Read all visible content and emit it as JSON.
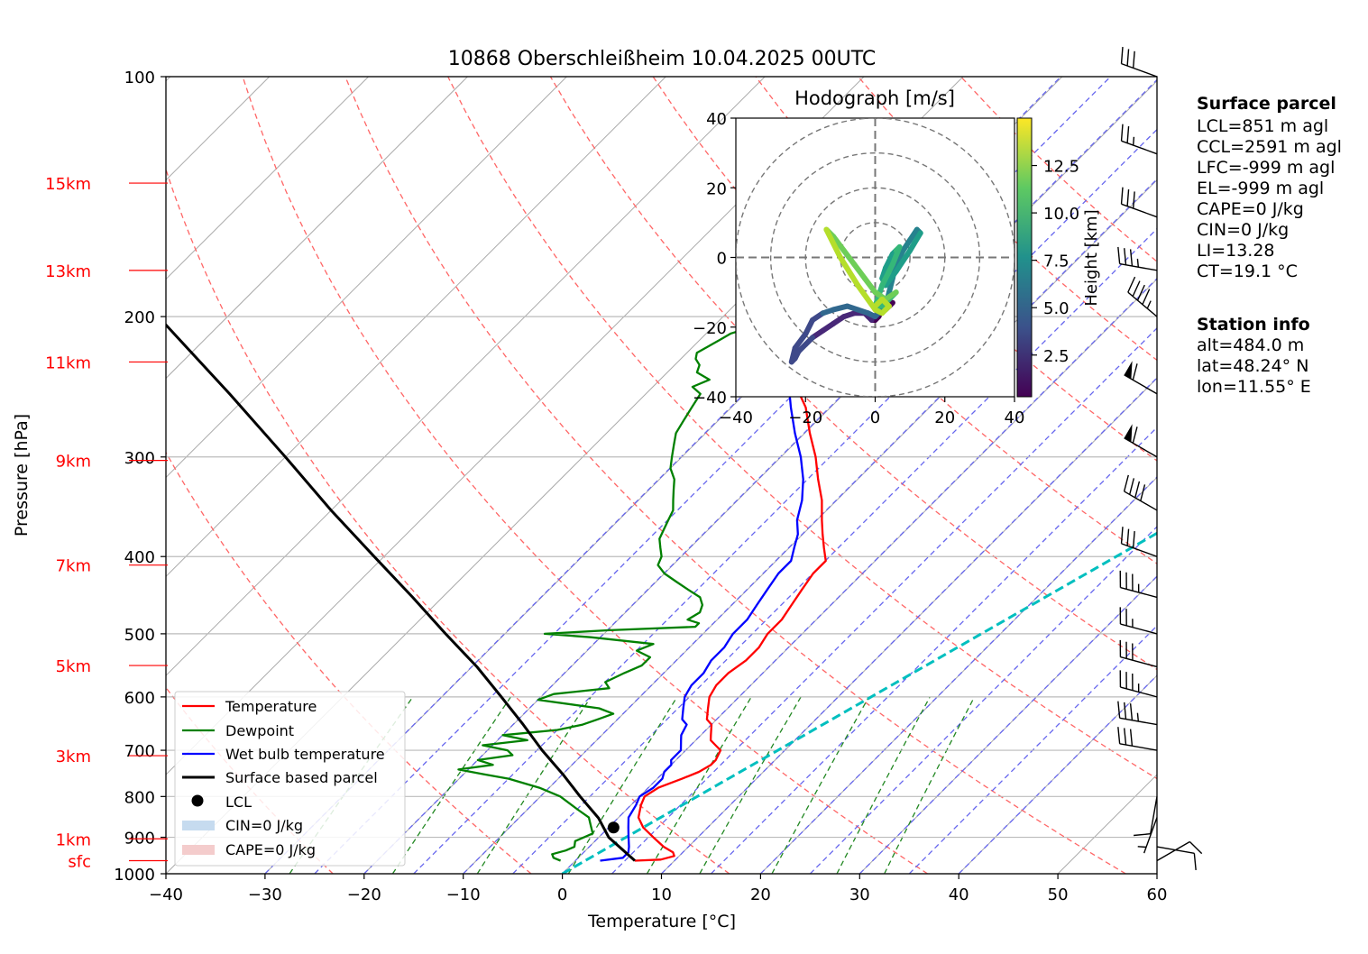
{
  "title": "10868 Oberschleißheim 10.04.2025 00UTC",
  "chart_data": {
    "type": "line",
    "subtype": "skew-T log-P diagram",
    "xlabel": "Temperature [°C]",
    "ylabel": "Pressure [hPa]",
    "xlim": [
      -40,
      60
    ],
    "ylim": [
      1000,
      100
    ],
    "y_scale": "log",
    "grid": true,
    "x_ticks": [
      "−40",
      "−30",
      "−20",
      "−10",
      "0",
      "10",
      "20",
      "30",
      "40",
      "50",
      "60"
    ],
    "y_ticks": [
      "100",
      "200",
      "300",
      "400",
      "500",
      "600",
      "700",
      "800",
      "900",
      "1000"
    ],
    "height_labels": [
      {
        "label": "15km",
        "p": 136
      },
      {
        "label": "13km",
        "p": 175
      },
      {
        "label": "11km",
        "p": 228
      },
      {
        "label": "9km",
        "p": 303
      },
      {
        "label": "7km",
        "p": 410
      },
      {
        "label": "5km",
        "p": 548
      },
      {
        "label": "3km",
        "p": 711
      },
      {
        "label": "1km",
        "p": 904
      },
      {
        "label": "sfc",
        "p": 963
      }
    ],
    "series": [
      {
        "name": "Temperature",
        "color": "#ff0000",
        "p": [
          963,
          960,
          950,
          940,
          925,
          900,
          875,
          850,
          820,
          800,
          780,
          760,
          745,
          730,
          720,
          700,
          690,
          680,
          670,
          650,
          640,
          620,
          600,
          580,
          560,
          540,
          520,
          500,
          480,
          460,
          440,
          420,
          405,
          390,
          375,
          360,
          340,
          320,
          300,
          280,
          260,
          250,
          240,
          230,
          225,
          220,
          215,
          205,
          200,
          195,
          190,
          185,
          180,
          175,
          170,
          165,
          160,
          155,
          150,
          145,
          140,
          137,
          135
        ],
        "t": [
          6.0,
          8.5,
          9.5,
          9.0,
          7.5,
          5.5,
          3.5,
          2.0,
          1.0,
          0.5,
          1.0,
          2.5,
          3.5,
          4.0,
          4.0,
          3.5,
          2.5,
          1.5,
          1.0,
          0.0,
          -1.0,
          -2.0,
          -3.0,
          -3.5,
          -3.5,
          -3.0,
          -3.0,
          -3.5,
          -3.5,
          -4.0,
          -4.5,
          -5.0,
          -5.0,
          -6.5,
          -8.0,
          -9.5,
          -11.5,
          -14.0,
          -16.5,
          -19.5,
          -22.5,
          -24.5,
          -26.0,
          -27.5,
          -28.0,
          -28.5,
          -29.0,
          -29.5,
          -30.0,
          -29.5,
          -29.0,
          -28.5,
          -28.0,
          -28.0,
          -28.0,
          -27.5,
          -27.5,
          -27.0,
          -27.0,
          -26.0,
          -25.5,
          -25.0,
          -24.5
        ]
      },
      {
        "name": "Dewpoint",
        "color": "#008000",
        "p": [
          963,
          955,
          945,
          935,
          925,
          910,
          900,
          890,
          870,
          850,
          830,
          800,
          780,
          760,
          750,
          740,
          730,
          720,
          710,
          700,
          690,
          680,
          670,
          660,
          650,
          640,
          630,
          620,
          605,
          595,
          585,
          575,
          560,
          548,
          535,
          525,
          515,
          505,
          500,
          495,
          490,
          485,
          480,
          470,
          460,
          450,
          440,
          430,
          420,
          410,
          400,
          390,
          380,
          370,
          360,
          350,
          340,
          330,
          320,
          310,
          300,
          290,
          280,
          270,
          260,
          250,
          245,
          240,
          235,
          230,
          226,
          222,
          218,
          214,
          210,
          206,
          203,
          200,
          196,
          192,
          188,
          184,
          180,
          175,
          170,
          165,
          160,
          155,
          150,
          145,
          140,
          137,
          135
        ],
        "t": [
          -1.5,
          -2.5,
          -3.0,
          -2.0,
          -1.5,
          -2.0,
          -1.5,
          -1.0,
          -2.0,
          -3.0,
          -5.0,
          -8.0,
          -11.0,
          -15.0,
          -18.0,
          -21.0,
          -18.0,
          -20.0,
          -17.0,
          -18.0,
          -21.0,
          -17.0,
          -20.0,
          -15.0,
          -13.0,
          -12.0,
          -11.0,
          -13.0,
          -20.0,
          -19.0,
          -14.0,
          -15.0,
          -14.0,
          -13.0,
          -13.0,
          -15.0,
          -14.0,
          -21.0,
          -26.0,
          -20.0,
          -11.5,
          -11.5,
          -13.0,
          -12.5,
          -13.0,
          -14.0,
          -16.0,
          -18.0,
          -20.0,
          -21.5,
          -22.0,
          -23.0,
          -24.0,
          -24.5,
          -25.0,
          -25.5,
          -26.5,
          -27.5,
          -28.5,
          -30.0,
          -31.0,
          -32.0,
          -33.0,
          -33.5,
          -34.0,
          -34.5,
          -36.0,
          -35.0,
          -37.0,
          -37.5,
          -38.5,
          -39.0,
          -38.5,
          -38.0,
          -37.5,
          -36.0,
          -35.5,
          -35.0,
          -35.5,
          -36.5,
          -37.0,
          -37.0,
          -37.5,
          -36.5,
          -36.0,
          -35.5,
          -35.0,
          -34.0,
          -33.5,
          -33.0,
          -32.5,
          -32.0,
          -31.5
        ]
      },
      {
        "name": "Wet bulb temperature",
        "color": "#0000ff",
        "p": [
          963,
          955,
          940,
          925,
          900,
          875,
          850,
          820,
          800,
          780,
          760,
          745,
          730,
          720,
          700,
          690,
          680,
          670,
          650,
          640,
          620,
          600,
          580,
          560,
          540,
          520,
          500,
          480,
          460,
          440,
          420,
          405,
          390,
          375,
          360,
          340,
          320,
          300,
          280,
          260,
          250,
          240,
          230,
          225,
          220,
          215,
          205,
          200,
          195,
          190,
          185,
          180,
          175,
          170,
          165,
          160,
          155,
          150,
          145,
          140,
          137,
          135
        ],
        "t": [
          2.5,
          4.5,
          4.5,
          4.0,
          3.0,
          2.0,
          1.0,
          0.5,
          0.0,
          0.5,
          0.5,
          0.0,
          0.0,
          -0.5,
          -0.5,
          -1.0,
          -1.5,
          -2.0,
          -2.5,
          -3.5,
          -4.5,
          -5.5,
          -6.0,
          -6.0,
          -6.5,
          -6.5,
          -7.0,
          -7.0,
          -7.5,
          -8.0,
          -8.5,
          -8.5,
          -9.5,
          -10.5,
          -12.0,
          -13.5,
          -15.5,
          -18.0,
          -21.0,
          -24.0,
          -25.5,
          -27.0,
          -28.5,
          -29.0,
          -29.5,
          -30.0,
          -30.0,
          -30.5,
          -30.0,
          -29.5,
          -29.0,
          -28.5,
          -28.5,
          -28.5,
          -28.0,
          -28.0,
          -27.5,
          -27.0,
          -26.5,
          -26.0,
          -25.5,
          -25.0
        ]
      },
      {
        "name": "Surface based parcel",
        "color": "#000000",
        "p": [
          963,
          900,
          851,
          800,
          750,
          700,
          650,
          600,
          550,
          500,
          450,
          400,
          350,
          300,
          250,
          200,
          150,
          100
        ],
        "t": [
          6.0,
          1.0,
          -2.0,
          -6.0,
          -10.0,
          -14.5,
          -19.0,
          -24.0,
          -29.5,
          -36.0,
          -43.0,
          -51.0,
          -60.0,
          -70.0,
          -82.0,
          -97.0,
          -115.0,
          -140.0
        ]
      }
    ],
    "lcl": {
      "name": "LCL",
      "p": 875,
      "t": 0.5
    },
    "legend": [
      "Temperature",
      "Dewpoint",
      "Wet bulb temperature",
      "Surface based parcel",
      "LCL",
      "CIN=0 J/kg",
      "CAPE=0 J/kg"
    ],
    "legend_position": "lower-left",
    "ccl_line": {
      "t_at_1000": 0,
      "t_at_100": 60
    },
    "wind_barbs": [
      {
        "p": 963,
        "speed_kt": 10,
        "dir_deg": 60
      },
      {
        "p": 925,
        "speed_kt": 10,
        "dir_deg": 100
      },
      {
        "p": 850,
        "speed_kt": 5,
        "dir_deg": 200
      },
      {
        "p": 800,
        "speed_kt": 10,
        "dir_deg": 190
      },
      {
        "p": 700,
        "speed_kt": 30,
        "dir_deg": 280
      },
      {
        "p": 650,
        "speed_kt": 35,
        "dir_deg": 280
      },
      {
        "p": 600,
        "speed_kt": 35,
        "dir_deg": 285
      },
      {
        "p": 550,
        "speed_kt": 30,
        "dir_deg": 285
      },
      {
        "p": 500,
        "speed_kt": 25,
        "dir_deg": 285
      },
      {
        "p": 450,
        "speed_kt": 35,
        "dir_deg": 285
      },
      {
        "p": 400,
        "speed_kt": 30,
        "dir_deg": 290
      },
      {
        "p": 350,
        "speed_kt": 40,
        "dir_deg": 300
      },
      {
        "p": 300,
        "speed_kt": 60,
        "dir_deg": 300
      },
      {
        "p": 250,
        "speed_kt": 60,
        "dir_deg": 300
      },
      {
        "p": 200,
        "speed_kt": 45,
        "dir_deg": 310
      },
      {
        "p": 175,
        "speed_kt": 35,
        "dir_deg": 280
      },
      {
        "p": 150,
        "speed_kt": 30,
        "dir_deg": 290
      },
      {
        "p": 125,
        "speed_kt": 25,
        "dir_deg": 290
      },
      {
        "p": 100,
        "speed_kt": 30,
        "dir_deg": 290
      }
    ],
    "hodograph": {
      "title": "Hodograph [m/s]",
      "xlim": [
        -40,
        40
      ],
      "ylim": [
        -40,
        40
      ],
      "x_ticks": [
        "−40",
        "−20",
        "0",
        "20",
        "40"
      ],
      "y_ticks": [
        "40",
        "20",
        "0",
        "−20",
        "−40"
      ],
      "colorbar_label": "Height [km]",
      "colorbar_ticks": [
        "2.5",
        "5.0",
        "7.5",
        "10.0",
        "12.5"
      ],
      "colorbar_range": [
        0.3,
        15
      ],
      "u": [
        3,
        4,
        5,
        4,
        2,
        1,
        0,
        -1,
        -2,
        -3,
        -6,
        -9,
        -12,
        -15,
        -18,
        -20,
        -22,
        -23,
        -24,
        -23,
        -20,
        -18,
        -15,
        -12,
        -8,
        -5,
        -2,
        0,
        1,
        3,
        4,
        5,
        6,
        8,
        10,
        12,
        13,
        10,
        6,
        3,
        2,
        3,
        4,
        5,
        6,
        7,
        5,
        2,
        0,
        2,
        4,
        6,
        3,
        0,
        -3,
        -6,
        -9,
        -12,
        -14,
        -10,
        -5,
        0,
        2,
        4,
        2,
        0
      ],
      "v": [
        -15,
        -14,
        -13,
        -14,
        -15,
        -17,
        -18,
        -18,
        -17,
        -16,
        -16,
        -17,
        -19,
        -21,
        -23,
        -25,
        -27,
        -29,
        -30,
        -26,
        -22,
        -18,
        -16,
        -15,
        -14,
        -15,
        -16,
        -17,
        -16,
        -14,
        -10,
        -6,
        -2,
        2,
        5,
        8,
        7,
        2,
        -4,
        -8,
        -6,
        -3,
        -1,
        1,
        2,
        3,
        -2,
        -8,
        -14,
        -14,
        -12,
        -10,
        -12,
        -10,
        -6,
        -2,
        2,
        6,
        8,
        0,
        -8,
        -15,
        -16,
        -14,
        -12,
        -14
      ],
      "h": [
        0.5,
        0.7,
        0.9,
        1.1,
        1.3,
        1.5,
        1.7,
        1.9,
        2.1,
        2.3,
        2.5,
        2.7,
        2.9,
        3.1,
        3.3,
        3.5,
        3.7,
        3.9,
        4.1,
        4.3,
        4.5,
        4.7,
        4.9,
        5.1,
        5.3,
        5.5,
        5.7,
        5.9,
        6.1,
        6.3,
        6.5,
        6.7,
        6.9,
        7.1,
        7.3,
        7.5,
        7.7,
        7.9,
        8.1,
        8.3,
        8.5,
        8.7,
        8.9,
        9.1,
        9.3,
        9.5,
        9.7,
        9.9,
        10.1,
        10.3,
        10.5,
        10.7,
        10.9,
        11.1,
        11.3,
        11.5,
        11.7,
        11.9,
        12.1,
        12.3,
        12.5,
        12.7,
        12.9,
        13.1,
        13.3,
        13.5
      ]
    }
  },
  "info": {
    "surface_parcel_title": "Surface parcel",
    "surface_parcel_lines": [
      "LCL=851 m agl",
      "CCL=2591 m agl",
      "LFC=-999 m agl",
      "EL=-999 m agl",
      "CAPE=0 J/kg",
      "CIN=0 J/kg",
      "LI=13.28",
      "CT=19.1 °C"
    ],
    "station_title": "Station info",
    "station_lines": [
      "alt=484.0 m",
      "lat=48.24° N",
      "lon=11.55° E"
    ]
  },
  "colors": {
    "temperature": "#ff0000",
    "dewpoint": "#008000",
    "wetbulb": "#0000ff",
    "parcel": "#000000",
    "height_labels": "#ff0000",
    "dry_adiabat": "#ff6666",
    "moist_adiabat": "#6666ee",
    "mixing_ratio": "#228822",
    "ccl_line": "#00bfbf",
    "cin_patch": "#c6dbef",
    "cape_patch": "#f4cccc"
  }
}
